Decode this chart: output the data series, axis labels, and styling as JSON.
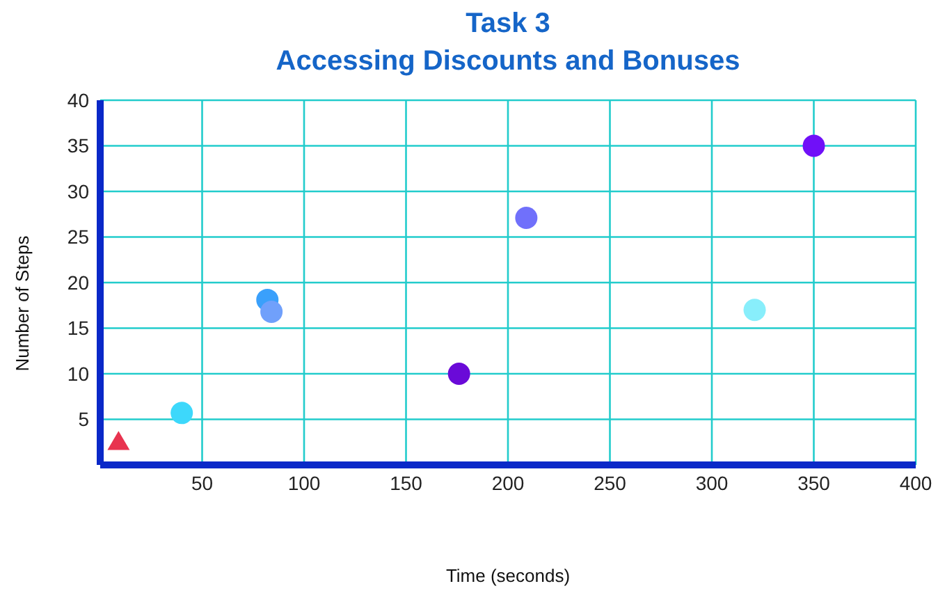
{
  "chart_data": {
    "type": "scatter",
    "title": "Task 3\nAccessing Discounts and Bonuses",
    "xlabel": "Time (seconds)",
    "ylabel": "Number of Steps",
    "xlim": [
      0,
      400
    ],
    "xticks": [
      50,
      100,
      150,
      200,
      250,
      300,
      350,
      400
    ],
    "ylim": [
      0,
      40
    ],
    "yticks": [
      5,
      10,
      15,
      20,
      25,
      30,
      35,
      40
    ],
    "grid": true,
    "legend": false,
    "series": [
      {
        "marker": "triangle",
        "color": "#e8334f",
        "x": [
          9
        ],
        "values": [
          2.5
        ]
      },
      {
        "marker": "circle",
        "colors": [
          "#3dd8fb",
          "#3aa0fb",
          "#70a0fb",
          "#6a0ad8",
          "#7070fb",
          "#88eefb",
          "#7010f8"
        ],
        "x": [
          40,
          82,
          84,
          176,
          209,
          321,
          350
        ],
        "values": [
          5.7,
          18.1,
          16.8,
          10,
          27.1,
          17,
          35
        ]
      }
    ]
  }
}
